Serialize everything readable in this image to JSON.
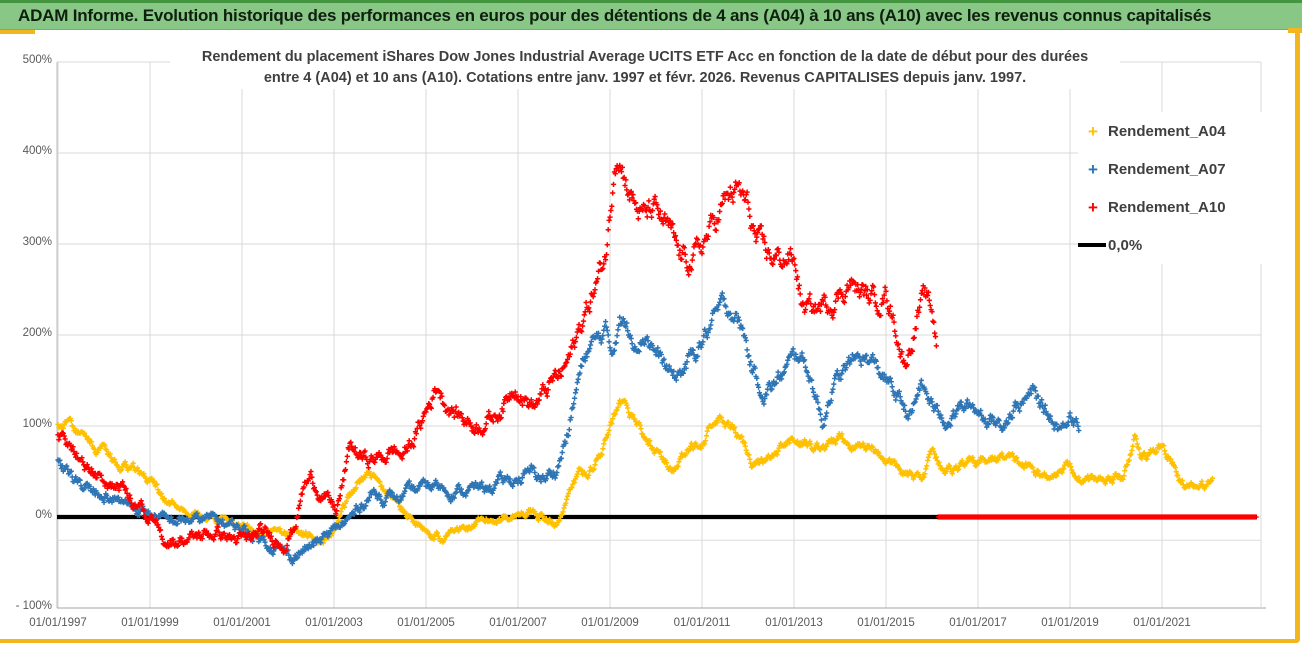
{
  "banner": {
    "title": "ADAM Informe. Evolution historique des performances en euros pour des détentions de 4 ans (A04) à 10 ans (A10) avec les revenus connus capitalisés"
  },
  "chart_data": {
    "type": "scatter",
    "title_line1": "Rendement du placement iShares Dow Jones Industrial Average UCITS ETF Acc en fonction de la date de début pour des durées",
    "title_line2": "entre 4 (A04) et 10 ans (A10). Cotations entre janv. 1997 et févr. 2026. Revenus CAPITALISES depuis janv. 1997.",
    "marker": "+",
    "grid": true,
    "legend_position": "right",
    "x_axis": {
      "tick_years": [
        1997,
        1999,
        2001,
        2003,
        2005,
        2007,
        2009,
        2011,
        2013,
        2015,
        2017,
        2019,
        2021
      ],
      "tick_labels": [
        "01/01/1997",
        "01/01/1999",
        "01/01/2001",
        "01/01/2003",
        "01/01/2005",
        "01/01/2007",
        "01/01/2009",
        "01/01/2011",
        "01/01/2013",
        "01/01/2015",
        "01/01/2017",
        "01/01/2019",
        "01/01/2021"
      ],
      "range": [
        1996.87,
        2023.1
      ]
    },
    "y_axis": {
      "tick_values": [
        500,
        400,
        300,
        200,
        100,
        0,
        -100
      ],
      "tick_labels": [
        "500%",
        "400%",
        "300%",
        "200%",
        "100%",
        "0%",
        "- 100%"
      ],
      "range": [
        -100,
        500
      ]
    },
    "zero_line": {
      "label": "0,0%",
      "value": 0,
      "color": "#000000"
    },
    "series": [
      {
        "name": "Rendement_A04",
        "color": "#FFC000",
        "jitter": 6,
        "clamp": [
          -32,
          128
        ],
        "keypoints": [
          [
            1997.0,
            100
          ],
          [
            1997.2,
            106
          ],
          [
            1997.45,
            90
          ],
          [
            1997.7,
            80
          ],
          [
            1998.0,
            72
          ],
          [
            1998.3,
            62
          ],
          [
            1998.6,
            56
          ],
          [
            1998.9,
            48
          ],
          [
            1999.1,
            32
          ],
          [
            1999.3,
            18
          ],
          [
            1999.6,
            10
          ],
          [
            1999.9,
            6
          ],
          [
            2000.1,
            0
          ],
          [
            2000.5,
            -3
          ],
          [
            2000.9,
            -7
          ],
          [
            2001.2,
            -13
          ],
          [
            2001.5,
            -17
          ],
          [
            2001.8,
            -20
          ],
          [
            2002.1,
            -17
          ],
          [
            2002.4,
            -21
          ],
          [
            2002.7,
            -25
          ],
          [
            2002.95,
            -20
          ],
          [
            2003.1,
            -5
          ],
          [
            2003.3,
            18
          ],
          [
            2003.5,
            36
          ],
          [
            2003.7,
            45
          ],
          [
            2003.85,
            44
          ],
          [
            2004.0,
            32
          ],
          [
            2004.2,
            24
          ],
          [
            2004.45,
            12
          ],
          [
            2004.7,
            -2
          ],
          [
            2004.95,
            -10
          ],
          [
            2005.2,
            -19
          ],
          [
            2005.35,
            -24
          ],
          [
            2005.55,
            -17
          ],
          [
            2005.8,
            -13
          ],
          [
            2006.1,
            -9
          ],
          [
            2006.4,
            -4
          ],
          [
            2006.7,
            0
          ],
          [
            2007.0,
            4
          ],
          [
            2007.3,
            8
          ],
          [
            2007.5,
            1
          ],
          [
            2007.8,
            -11
          ],
          [
            2008.0,
            12
          ],
          [
            2008.2,
            32
          ],
          [
            2008.35,
            50
          ],
          [
            2008.5,
            44
          ],
          [
            2008.7,
            62
          ],
          [
            2008.9,
            82
          ],
          [
            2009.1,
            108
          ],
          [
            2009.25,
            120
          ],
          [
            2009.4,
            114
          ],
          [
            2009.6,
            104
          ],
          [
            2009.8,
            82
          ],
          [
            2010.0,
            73
          ],
          [
            2010.15,
            62
          ],
          [
            2010.35,
            52
          ],
          [
            2010.6,
            67
          ],
          [
            2010.85,
            77
          ],
          [
            2011.1,
            92
          ],
          [
            2011.35,
            105
          ],
          [
            2011.5,
            100
          ],
          [
            2011.7,
            92
          ],
          [
            2011.9,
            80
          ],
          [
            2012.1,
            60
          ],
          [
            2012.25,
            57
          ],
          [
            2012.5,
            64
          ],
          [
            2012.75,
            72
          ],
          [
            2013.0,
            85
          ],
          [
            2013.2,
            82
          ],
          [
            2013.45,
            75
          ],
          [
            2013.7,
            79
          ],
          [
            2014.0,
            86
          ],
          [
            2014.3,
            77
          ],
          [
            2014.6,
            80
          ],
          [
            2014.85,
            70
          ],
          [
            2015.1,
            60
          ],
          [
            2015.35,
            48
          ],
          [
            2015.6,
            42
          ],
          [
            2015.85,
            48
          ],
          [
            2016.0,
            76
          ],
          [
            2016.1,
            66
          ],
          [
            2016.3,
            52
          ],
          [
            2016.6,
            55
          ],
          [
            2016.9,
            59
          ],
          [
            2017.2,
            62
          ],
          [
            2017.5,
            66
          ],
          [
            2017.8,
            61
          ],
          [
            2018.1,
            54
          ],
          [
            2018.4,
            44
          ],
          [
            2018.7,
            50
          ],
          [
            2018.95,
            58
          ],
          [
            2019.2,
            44
          ],
          [
            2019.5,
            41
          ],
          [
            2019.8,
            43
          ],
          [
            2020.1,
            42
          ],
          [
            2020.3,
            60
          ],
          [
            2020.4,
            88
          ],
          [
            2020.55,
            64
          ],
          [
            2020.8,
            71
          ],
          [
            2021.0,
            79
          ],
          [
            2021.2,
            62
          ],
          [
            2021.4,
            38
          ],
          [
            2021.6,
            31
          ],
          [
            2021.9,
            33
          ],
          [
            2022.1,
            41
          ]
        ]
      },
      {
        "name": "Rendement_A07",
        "color": "#2E75B6",
        "jitter": 8,
        "clamp": [
          -54,
          246
        ],
        "keypoints": [
          [
            1997.0,
            58
          ],
          [
            1997.3,
            40
          ],
          [
            1997.6,
            32
          ],
          [
            1998.0,
            27
          ],
          [
            1998.35,
            20
          ],
          [
            1998.7,
            9
          ],
          [
            1999.0,
            4
          ],
          [
            1999.4,
            -6
          ],
          [
            1999.7,
            -3
          ],
          [
            2000.0,
            -4
          ],
          [
            2000.3,
            -2
          ],
          [
            2000.6,
            -5
          ],
          [
            2000.9,
            -12
          ],
          [
            2001.2,
            -18
          ],
          [
            2001.5,
            -25
          ],
          [
            2001.8,
            -35
          ],
          [
            2002.05,
            -44
          ],
          [
            2002.3,
            -37
          ],
          [
            2002.6,
            -29
          ],
          [
            2002.9,
            -21
          ],
          [
            2003.1,
            -11
          ],
          [
            2003.35,
            -2
          ],
          [
            2003.6,
            14
          ],
          [
            2003.85,
            27
          ],
          [
            2004.1,
            22
          ],
          [
            2004.4,
            20
          ],
          [
            2004.7,
            27
          ],
          [
            2005.0,
            34
          ],
          [
            2005.25,
            37
          ],
          [
            2005.5,
            30
          ],
          [
            2005.8,
            28
          ],
          [
            2006.1,
            31
          ],
          [
            2006.4,
            33
          ],
          [
            2006.7,
            39
          ],
          [
            2007.0,
            42
          ],
          [
            2007.3,
            49
          ],
          [
            2007.6,
            42
          ],
          [
            2007.85,
            53
          ],
          [
            2008.1,
            95
          ],
          [
            2008.3,
            148
          ],
          [
            2008.5,
            182
          ],
          [
            2008.7,
            193
          ],
          [
            2008.9,
            203
          ],
          [
            2009.05,
            180
          ],
          [
            2009.2,
            222
          ],
          [
            2009.35,
            207
          ],
          [
            2009.55,
            198
          ],
          [
            2009.8,
            203
          ],
          [
            2010.0,
            180
          ],
          [
            2010.2,
            164
          ],
          [
            2010.4,
            152
          ],
          [
            2010.65,
            164
          ],
          [
            2010.9,
            186
          ],
          [
            2011.1,
            203
          ],
          [
            2011.3,
            220
          ],
          [
            2011.5,
            233
          ],
          [
            2011.7,
            224
          ],
          [
            2011.9,
            203
          ],
          [
            2012.1,
            160
          ],
          [
            2012.35,
            137
          ],
          [
            2012.6,
            147
          ],
          [
            2012.85,
            163
          ],
          [
            2013.1,
            180
          ],
          [
            2013.3,
            164
          ],
          [
            2013.5,
            130
          ],
          [
            2013.62,
            103
          ],
          [
            2013.8,
            140
          ],
          [
            2014.1,
            160
          ],
          [
            2014.45,
            177
          ],
          [
            2014.7,
            169
          ],
          [
            2015.0,
            151
          ],
          [
            2015.3,
            127
          ],
          [
            2015.55,
            110
          ],
          [
            2015.75,
            146
          ],
          [
            2015.95,
            127
          ],
          [
            2016.15,
            114
          ],
          [
            2016.35,
            107
          ],
          [
            2016.6,
            119
          ],
          [
            2016.9,
            121
          ],
          [
            2017.2,
            110
          ],
          [
            2017.5,
            102
          ],
          [
            2017.8,
            121
          ],
          [
            2018.0,
            127
          ],
          [
            2018.2,
            136
          ],
          [
            2018.45,
            117
          ],
          [
            2018.65,
            104
          ],
          [
            2018.85,
            97
          ],
          [
            2019.0,
            120
          ],
          [
            2019.2,
            102
          ]
        ]
      },
      {
        "name": "Rendement_A10",
        "color": "#FF0000",
        "jitter": 9,
        "clamp": [
          -40,
          421
        ],
        "zero_tail": [
          2016.14,
          2023.05
        ],
        "keypoints": [
          [
            1997.0,
            93
          ],
          [
            1997.3,
            70
          ],
          [
            1997.6,
            55
          ],
          [
            1997.9,
            45
          ],
          [
            1998.2,
            38
          ],
          [
            1998.5,
            29
          ],
          [
            1998.8,
            10
          ],
          [
            1999.05,
            -8
          ],
          [
            1999.3,
            -26
          ],
          [
            1999.6,
            -25
          ],
          [
            1999.9,
            -24
          ],
          [
            2000.2,
            -19
          ],
          [
            2000.5,
            -17
          ],
          [
            2000.8,
            -24
          ],
          [
            2001.1,
            -27
          ],
          [
            2001.4,
            -18
          ],
          [
            2001.7,
            -24
          ],
          [
            2001.95,
            -27
          ],
          [
            2002.15,
            -8
          ],
          [
            2002.35,
            35
          ],
          [
            2002.5,
            42
          ],
          [
            2002.7,
            28
          ],
          [
            2002.9,
            16
          ],
          [
            2003.05,
            6
          ],
          [
            2003.2,
            38
          ],
          [
            2003.35,
            78
          ],
          [
            2003.5,
            70
          ],
          [
            2003.7,
            63
          ],
          [
            2003.95,
            64
          ],
          [
            2004.15,
            68
          ],
          [
            2004.3,
            74
          ],
          [
            2004.5,
            67
          ],
          [
            2004.7,
            83
          ],
          [
            2004.9,
            103
          ],
          [
            2005.1,
            128
          ],
          [
            2005.25,
            145
          ],
          [
            2005.45,
            124
          ],
          [
            2005.65,
            114
          ],
          [
            2005.9,
            107
          ],
          [
            2006.1,
            100
          ],
          [
            2006.3,
            107
          ],
          [
            2006.5,
            111
          ],
          [
            2006.75,
            128
          ],
          [
            2006.95,
            148
          ],
          [
            2007.15,
            131
          ],
          [
            2007.35,
            122
          ],
          [
            2007.55,
            134
          ],
          [
            2007.75,
            148
          ],
          [
            2007.95,
            158
          ],
          [
            2008.15,
            178
          ],
          [
            2008.35,
            208
          ],
          [
            2008.55,
            236
          ],
          [
            2008.75,
            262
          ],
          [
            2008.9,
            288
          ],
          [
            2009.0,
            330
          ],
          [
            2009.1,
            398
          ],
          [
            2009.18,
            408
          ],
          [
            2009.3,
            382
          ],
          [
            2009.5,
            350
          ],
          [
            2009.7,
            328
          ],
          [
            2009.9,
            336
          ],
          [
            2010.1,
            328
          ],
          [
            2010.3,
            310
          ],
          [
            2010.55,
            282
          ],
          [
            2010.8,
            284
          ],
          [
            2011.0,
            298
          ],
          [
            2011.2,
            316
          ],
          [
            2011.4,
            338
          ],
          [
            2011.6,
            352
          ],
          [
            2011.8,
            358
          ],
          [
            2012.0,
            338
          ],
          [
            2012.2,
            298
          ],
          [
            2012.45,
            286
          ],
          [
            2012.7,
            284
          ],
          [
            2012.9,
            288
          ],
          [
            2013.05,
            272
          ],
          [
            2013.2,
            228
          ],
          [
            2013.4,
            227
          ],
          [
            2013.6,
            231
          ],
          [
            2013.8,
            238
          ],
          [
            2014.0,
            246
          ],
          [
            2014.2,
            258
          ],
          [
            2014.4,
            249
          ],
          [
            2014.6,
            241
          ],
          [
            2014.8,
            239
          ],
          [
            2015.0,
            248
          ],
          [
            2015.2,
            212
          ],
          [
            2015.4,
            168
          ],
          [
            2015.55,
            192
          ],
          [
            2015.7,
            226
          ],
          [
            2015.85,
            238
          ],
          [
            2016.0,
            225
          ],
          [
            2016.1,
            192
          ]
        ]
      }
    ]
  }
}
